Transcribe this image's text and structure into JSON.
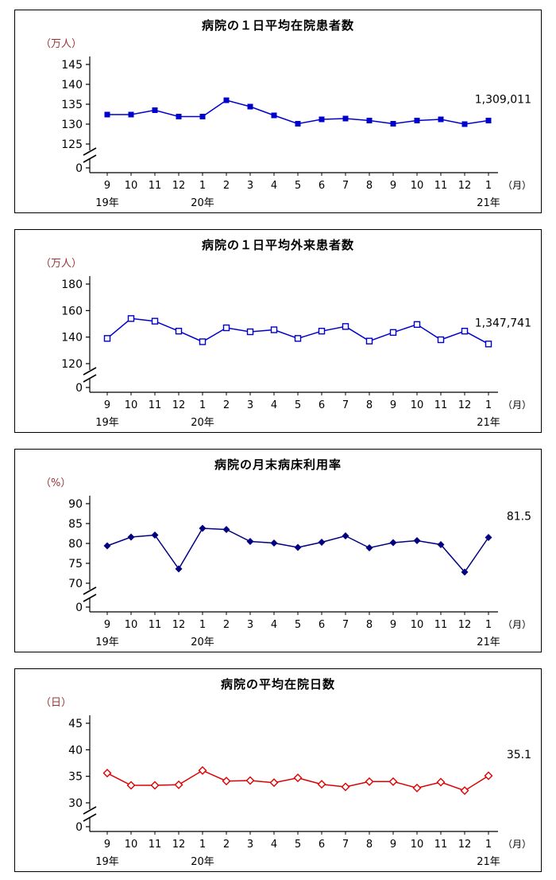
{
  "colors": {
    "unit_label": "#993333",
    "axis": "#000000",
    "text": "#000000",
    "background": "#ffffff"
  },
  "x_axis": {
    "months": [
      "9",
      "10",
      "11",
      "12",
      "1",
      "2",
      "3",
      "4",
      "5",
      "6",
      "7",
      "8",
      "9",
      "10",
      "11",
      "12",
      "1"
    ],
    "month_unit": "（月）",
    "year_labels": [
      {
        "text": "19年",
        "month_index": 0
      },
      {
        "text": "20年",
        "month_index": 4
      },
      {
        "text": "21年",
        "month_index": 16
      }
    ]
  },
  "chart_data": [
    {
      "type": "line",
      "title": "病院の１日平均在院患者数",
      "unit": "（万人）",
      "annotation": "1,309,011",
      "line_color": "#0000CC",
      "marker": "square-filled",
      "ylim": [
        125,
        145
      ],
      "yticks": [
        145,
        140,
        135,
        130,
        125
      ],
      "zero_label": "0",
      "values": [
        132.4,
        132.4,
        133.5,
        131.9,
        131.9,
        136.0,
        134.4,
        132.2,
        130.1,
        131.2,
        131.4,
        130.9,
        130.1,
        130.9,
        131.2,
        130.0,
        130.9
      ]
    },
    {
      "type": "line",
      "title": "病院の１日平均外来患者数",
      "unit": "（万人）",
      "annotation": "1,347,741",
      "line_color": "#0000CC",
      "marker": "square-open",
      "ylim": [
        120,
        180
      ],
      "yticks": [
        180,
        160,
        140,
        120
      ],
      "zero_label": "0",
      "values": [
        139.0,
        154.0,
        152.0,
        144.5,
        136.5,
        147.0,
        144.0,
        145.5,
        139.0,
        144.5,
        148.0,
        137.0,
        143.5,
        149.5,
        138.0,
        144.5,
        134.8
      ]
    },
    {
      "type": "line",
      "title": "病院の月末病床利用率",
      "unit": "（%）",
      "annotation": "81.5",
      "line_color": "#000080",
      "marker": "diamond-filled",
      "ylim": [
        70,
        90
      ],
      "yticks": [
        90,
        85,
        80,
        75,
        70
      ],
      "zero_label": "0",
      "values": [
        79.4,
        81.6,
        82.1,
        73.6,
        83.8,
        83.5,
        80.5,
        80.1,
        79.0,
        80.3,
        81.9,
        78.9,
        80.2,
        80.7,
        79.7,
        72.8,
        81.5
      ]
    },
    {
      "type": "line",
      "title": "病院の平均在院日数",
      "unit": "（日）",
      "annotation": "35.1",
      "line_color": "#DD0000",
      "marker": "diamond-open",
      "ylim": [
        30,
        45
      ],
      "yticks": [
        45,
        40,
        35,
        30
      ],
      "zero_label": "0",
      "values": [
        35.6,
        33.3,
        33.3,
        33.4,
        36.1,
        34.1,
        34.2,
        33.8,
        34.7,
        33.5,
        33.0,
        34.0,
        34.0,
        32.8,
        33.9,
        32.3,
        35.1
      ]
    }
  ]
}
